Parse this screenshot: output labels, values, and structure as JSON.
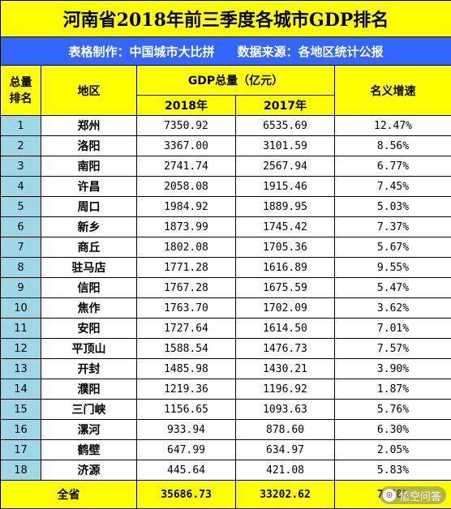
{
  "title": "河南省2018年前三季度各城市GDP排名",
  "subtitle": {
    "maker": "表格制作：中国城市大比拼",
    "source": "数据来源：各地区统计公报"
  },
  "headers": {
    "rank": [
      "总量",
      "排名"
    ],
    "region": "地区",
    "gdp_total": "GDP总量（亿元）",
    "year_2018": "2018年",
    "year_2017": "2017年",
    "growth": "名义增速"
  },
  "rows": [
    {
      "rank": "1",
      "city": "郑州",
      "gdp2018": "7350.92",
      "gdp2017": "6535.69",
      "growth": "12.47%"
    },
    {
      "rank": "2",
      "city": "洛阳",
      "gdp2018": "3367.00",
      "gdp2017": "3101.59",
      "growth": "8.56%"
    },
    {
      "rank": "3",
      "city": "南阳",
      "gdp2018": "2741.74",
      "gdp2017": "2567.94",
      "growth": "6.77%"
    },
    {
      "rank": "4",
      "city": "许昌",
      "gdp2018": "2058.08",
      "gdp2017": "1915.46",
      "growth": "7.45%"
    },
    {
      "rank": "5",
      "city": "周口",
      "gdp2018": "1984.92",
      "gdp2017": "1889.95",
      "growth": "5.03%"
    },
    {
      "rank": "6",
      "city": "新乡",
      "gdp2018": "1873.99",
      "gdp2017": "1745.42",
      "growth": "7.37%"
    },
    {
      "rank": "7",
      "city": "商丘",
      "gdp2018": "1802.08",
      "gdp2017": "1705.36",
      "growth": "5.67%"
    },
    {
      "rank": "8",
      "city": "驻马店",
      "gdp2018": "1771.28",
      "gdp2017": "1616.89",
      "growth": "9.55%"
    },
    {
      "rank": "9",
      "city": "信阳",
      "gdp2018": "1767.28",
      "gdp2017": "1675.59",
      "growth": "5.47%"
    },
    {
      "rank": "10",
      "city": "焦作",
      "gdp2018": "1763.70",
      "gdp2017": "1702.09",
      "growth": "3.62%"
    },
    {
      "rank": "11",
      "city": "安阳",
      "gdp2018": "1727.64",
      "gdp2017": "1614.50",
      "growth": "7.01%"
    },
    {
      "rank": "12",
      "city": "平顶山",
      "gdp2018": "1588.54",
      "gdp2017": "1476.73",
      "growth": "7.57%"
    },
    {
      "rank": "13",
      "city": "开封",
      "gdp2018": "1485.98",
      "gdp2017": "1430.21",
      "growth": "3.90%"
    },
    {
      "rank": "14",
      "city": "濮阳",
      "gdp2018": "1219.36",
      "gdp2017": "1196.92",
      "growth": "1.87%"
    },
    {
      "rank": "15",
      "city": "三门峡",
      "gdp2018": "1156.65",
      "gdp2017": "1093.63",
      "growth": "5.76%"
    },
    {
      "rank": "16",
      "city": "漯河",
      "gdp2018": "933.94",
      "gdp2017": "878.60",
      "growth": "6.30%"
    },
    {
      "rank": "17",
      "city": "鹤壁",
      "gdp2018": "647.99",
      "gdp2017": "634.97",
      "growth": "2.05%"
    },
    {
      "rank": "18",
      "city": "济源",
      "gdp2018": "445.64",
      "gdp2017": "421.08",
      "growth": "5.83%"
    }
  ],
  "total": {
    "label": "全省",
    "gdp2018": "35686.73",
    "gdp2017": "33202.62",
    "growth": "7.48%"
  },
  "watermark": {
    "text": "悟空问答",
    "icon": "wukong-logo-icon"
  },
  "colors": {
    "header_yellow": "#ffff00",
    "subtitle_blue": "#3366ff",
    "rank_cell_blue": "#9ed8e6"
  }
}
